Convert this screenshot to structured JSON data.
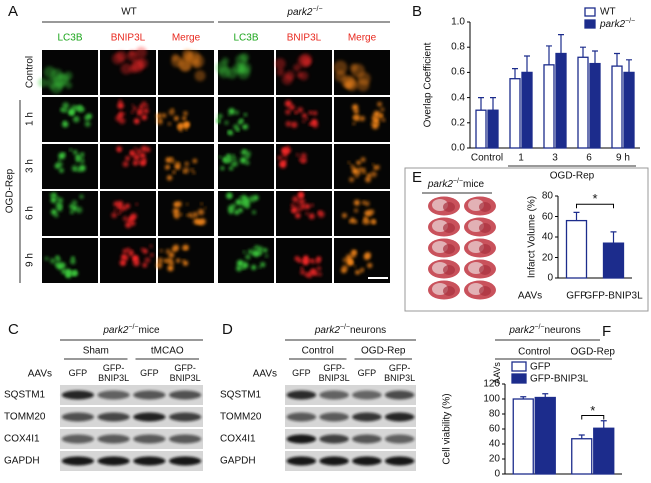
{
  "panel_labels": [
    "A",
    "B",
    "C",
    "D",
    "E",
    "F"
  ],
  "panel_a": {
    "groups": [
      {
        "name": "WT"
      },
      {
        "name": "park2",
        "sup": "−/−"
      }
    ],
    "channels": [
      "LC3B",
      "BNIP3L",
      "Merge"
    ],
    "rows": [
      "Control",
      "1 h",
      "3 h",
      "6 h",
      "9 h"
    ],
    "row_group": "OGD-Rep"
  },
  "panel_c": {
    "title": "park2",
    "title_sup": "−/−",
    "title_rest": "mice",
    "groups": [
      "Sham",
      "tMCAO"
    ],
    "lane_label": "AAVs",
    "lanes": [
      "GFP",
      "GFP-BNIP3L",
      "GFP",
      "GFP-BNIP3L"
    ],
    "proteins": [
      "SQSTM1",
      "TOMM20",
      "COX4I1",
      "GAPDH"
    ]
  },
  "panel_d": {
    "title": "park2",
    "title_sup": "−/−",
    "title_rest": "neurons",
    "groups": [
      "Control",
      "OGD-Rep"
    ],
    "lane_label": "AAVs",
    "lanes": [
      "GFP",
      "GFP-BNIP3L",
      "GFP",
      "GFP-BNIP3L"
    ],
    "proteins": [
      "SQSTM1",
      "TOMM20",
      "COX4I1",
      "GAPDH"
    ]
  },
  "chart_data": [
    {
      "type": "bar",
      "y_label": "Overlap Coefficient",
      "categories": [
        "Control",
        "1",
        "3",
        "6",
        "9 h"
      ],
      "group_label": "OGD-Rep",
      "ylim": [
        0,
        1
      ],
      "yticks": [
        {
          "value": 0,
          "label": "0.0"
        },
        {
          "value": 0.2,
          "label": "0.2"
        },
        {
          "value": 0.4,
          "label": "0.4"
        },
        {
          "value": 0.6,
          "label": "0.6"
        },
        {
          "value": 0.8,
          "label": "0.8"
        },
        {
          "value": 1,
          "label": "1.0"
        }
      ],
      "series": [
        {
          "name": "WT",
          "color": "#ffffff",
          "values": [
            0.3,
            0.55,
            0.66,
            0.72,
            0.65
          ],
          "errors": [
            0.1,
            0.08,
            0.15,
            0.08,
            0.1
          ]
        },
        {
          "name": "park2",
          "name_sup": "−/−",
          "color": "#1c2c8c",
          "values": [
            0.3,
            0.6,
            0.75,
            0.67,
            0.6
          ],
          "errors": [
            0.1,
            0.13,
            0.15,
            0.1,
            0.1
          ]
        }
      ]
    },
    {
      "type": "bar",
      "title": "park2",
      "title_sup": "−/−",
      "title_rest": "mice",
      "y_label": "Infarct Volume (%)",
      "x_prefix": "AAVs",
      "categories": [
        "GFP",
        "GFP-BNIP3L"
      ],
      "ylim": [
        0,
        80
      ],
      "yticks": [
        0,
        20,
        40,
        60,
        80
      ],
      "significance": "*",
      "series": [
        {
          "colors": [
            "#ffffff",
            "#1c2c8c"
          ],
          "values": [
            56,
            34
          ],
          "errors": [
            8,
            11
          ]
        }
      ]
    },
    {
      "type": "bar",
      "title": "park2",
      "title_sup": "−/−",
      "title_rest": "neurons",
      "y_label": "Cell viability (%)",
      "x_prefix": "AAVs",
      "categories": [
        "Control",
        "OGD-Rep"
      ],
      "ylim": [
        0,
        120
      ],
      "yticks": [
        0,
        20,
        40,
        60,
        80,
        100,
        120
      ],
      "significance": "*",
      "series": [
        {
          "name": "GFP",
          "color": "#ffffff",
          "values": [
            100,
            47
          ],
          "errors": [
            3,
            5
          ]
        },
        {
          "name": "GFP-BNIP3L",
          "color": "#1c2c8c",
          "values": [
            102,
            61
          ],
          "errors": [
            5,
            10
          ]
        }
      ]
    }
  ]
}
